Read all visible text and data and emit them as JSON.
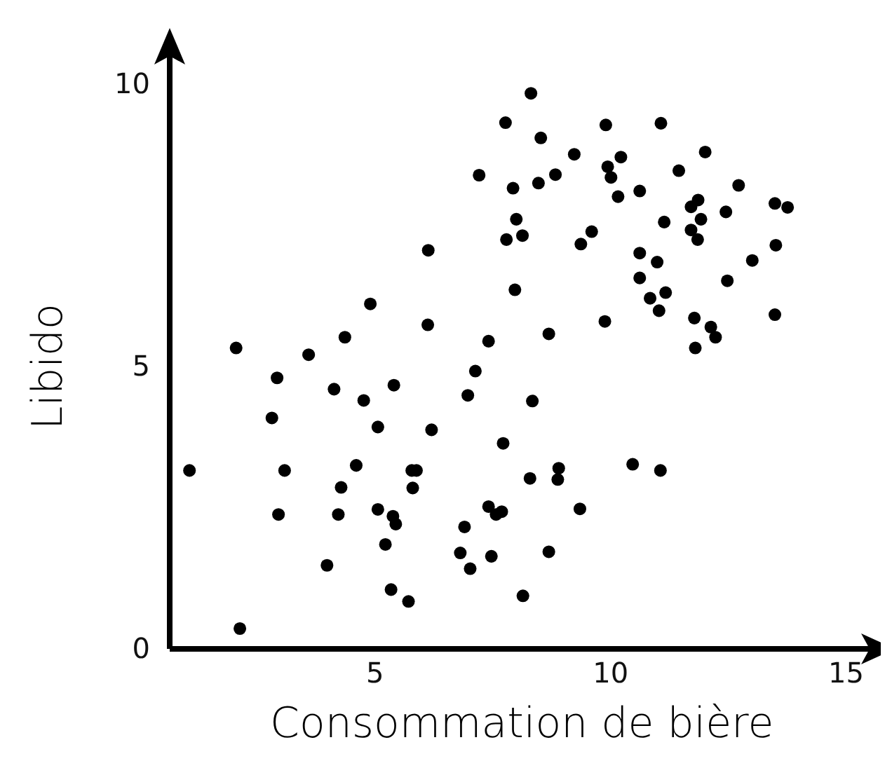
{
  "chart_data": {
    "type": "scatter",
    "xlabel": "Consommation de bière",
    "ylabel": "Libido",
    "xlim": [
      0.64,
      15.5
    ],
    "ylim": [
      0,
      10.5
    ],
    "xticks": [
      5,
      10,
      15
    ],
    "yticks": [
      0,
      5,
      10
    ],
    "grid": false,
    "marker": "circle",
    "series": [
      {
        "color": "#000000",
        "x": [
          1.06,
          2.05,
          2.13,
          2.92,
          2.81,
          3.08,
          2.95,
          3.59,
          4.36,
          4.13,
          4.9,
          4.76,
          5.06,
          5.4,
          4.6,
          4.28,
          4.22,
          3.98,
          5.06,
          5.38,
          5.44,
          5.22,
          5.34,
          5.71,
          5.78,
          5.88,
          5.8,
          6.2,
          6.12,
          6.13,
          6.9,
          6.81,
          7.02,
          6.97,
          7.13,
          7.41,
          7.21,
          7.77,
          7.93,
          8.0,
          7.79,
          8.13,
          7.97,
          7.72,
          7.41,
          7.57,
          7.69,
          7.47,
          8.14,
          8.69,
          8.29,
          8.34,
          8.69,
          8.9,
          8.88,
          9.35,
          8.31,
          8.52,
          8.47,
          8.83,
          9.23,
          9.6,
          9.37,
          9.9,
          9.94,
          10.01,
          10.22,
          10.16,
          9.88,
          10.47,
          11.06,
          10.62,
          10.62,
          10.99,
          10.62,
          10.84,
          11.17,
          11.03,
          11.14,
          11.07,
          11.45,
          12.01,
          11.71,
          11.86,
          11.92,
          11.71,
          11.85,
          11.78,
          11.8,
          12.13,
          12.23,
          12.45,
          12.72,
          12.48,
          13.01,
          13.49,
          13.76,
          13.51,
          13.49
        ],
        "values": [
          3.16,
          5.33,
          0.36,
          4.8,
          4.09,
          3.16,
          2.38,
          5.21,
          5.52,
          4.6,
          6.11,
          4.4,
          3.93,
          4.67,
          3.25,
          2.86,
          2.38,
          1.48,
          2.47,
          2.35,
          2.21,
          1.85,
          1.05,
          0.84,
          3.16,
          3.16,
          2.85,
          3.88,
          5.74,
          7.06,
          2.16,
          1.7,
          1.42,
          4.49,
          4.92,
          5.45,
          8.39,
          9.32,
          8.16,
          7.61,
          7.25,
          7.32,
          6.36,
          3.64,
          2.52,
          2.38,
          2.43,
          1.64,
          0.94,
          1.72,
          3.02,
          4.39,
          5.58,
          3.2,
          3.0,
          2.48,
          9.84,
          9.05,
          8.25,
          8.4,
          8.76,
          7.39,
          7.17,
          9.28,
          8.54,
          8.35,
          8.71,
          8.01,
          5.8,
          3.27,
          3.16,
          8.11,
          7.01,
          6.85,
          6.57,
          6.21,
          6.31,
          5.99,
          7.56,
          9.31,
          8.47,
          8.8,
          7.83,
          7.95,
          7.61,
          7.42,
          7.25,
          5.86,
          5.33,
          5.7,
          5.52,
          7.74,
          8.21,
          6.52,
          6.88,
          7.89,
          7.82,
          7.15,
          5.92
        ]
      }
    ]
  }
}
